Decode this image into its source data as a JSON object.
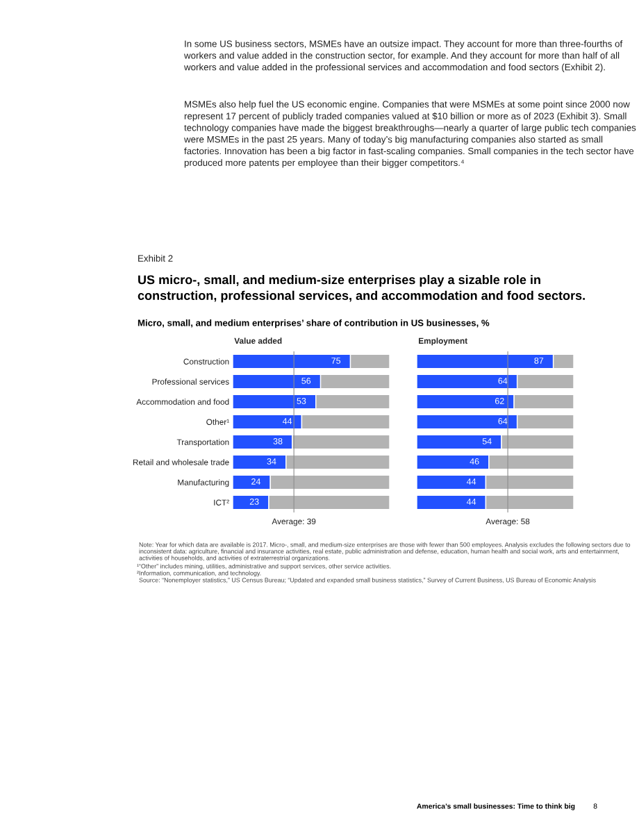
{
  "chart_data": [
    {
      "type": "bar",
      "orientation": "horizontal",
      "stacked": true,
      "title": "Value added",
      "tick_labels": "y",
      "xlim": [
        0,
        100
      ],
      "categories": [
        "Construction",
        "Professional services",
        "Accommodation and food",
        "Other¹",
        "Transportation",
        "Retail and wholesale trade",
        "Manufacturing",
        "ICT²"
      ],
      "series": [
        {
          "color": "#2251ff",
          "values": [
            75,
            56,
            53,
            44,
            38,
            34,
            24,
            23
          ],
          "value_labels": [
            "75",
            "56",
            "53",
            "44",
            "38",
            "34",
            "24",
            "23"
          ]
        },
        {
          "color": "#b3b3b3",
          "values": [
            25,
            44,
            47,
            56,
            62,
            66,
            76,
            77
          ]
        }
      ],
      "ref_lines": [
        {
          "axis": "x",
          "value": 39,
          "label": "Average: 39",
          "color": "#8c8c8c"
        }
      ],
      "annotations": [
        "In some US business sectors, MSMEs have an outsize impact. They account for more than three-fourths of workers and value added in the construction sector, for example. And they account for more than half of all workers and value added in the professional services and accommodation and food sectors (Exhibit 2).",
        "MSMEs also help fuel the US economic engine. Companies that were MSMEs at some point since 2000 now represent 17 percent of publicly traded companies valued at $10 billion or more as of 2023 (Exhibit 3). Small technology companies have made the biggest breakthroughs—nearly a quarter of large public tech companies were MSMEs in the past 25 years. Many of today’s big manufacturing companies also started as small factories. Innovation has been a big factor in fast-scaling companies. Small companies in the tech sector have produced more patents per employee than their bigger competitors.⁴",
        "Exhibit 2",
        "US micro-, small, and medium-size enterprises play a sizable role in\nconstruction, professional services, and accommodation and food sectors.",
        "Micro, small, and medium enterprises’ share of contribution in US businesses, %",
        "Note: Year for which data are available is 2017. Micro-, small, and medium-size enterprises are those with fewer than 500 employees. Analysis excludes the following sectors due to inconsistent data: agriculture, financial and insurance activities, real estate, public administration and defense, education, human health and social work, arts and entertainment, activities of households, and activities of extraterrestrial organizations.",
        "¹“Other” includes mining, utilities, administrative and support services, other service activities.",
        "²Information, communication, and technology.",
        "Source: “Nonemployer statistics,” US Census Bureau; “Updated and expanded small business statistics,” Survey of Current Business, US Bureau of Economic Analysis",
        "America’s small businesses: Time to think big",
        "8"
      ]
    },
    {
      "type": "bar",
      "orientation": "horizontal",
      "stacked": true,
      "title": "Employment",
      "tick_labels": false,
      "xlim": [
        0,
        100
      ],
      "categories": [
        null,
        null,
        null,
        null,
        null,
        null,
        null,
        null
      ],
      "series": [
        {
          "color": "#2251ff",
          "values": [
            87,
            64,
            62,
            64,
            54,
            46,
            44,
            44
          ],
          "value_labels": [
            "87",
            "64",
            "62",
            "64",
            "54",
            "46",
            "44",
            "44"
          ]
        },
        {
          "color": "#b3b3b3",
          "values": [
            13,
            36,
            38,
            36,
            46,
            54,
            56,
            56
          ]
        }
      ],
      "ref_lines": [
        {
          "axis": "x",
          "value": 58,
          "label": "Average: 58",
          "color": "#8c8c8c"
        }
      ]
    }
  ]
}
